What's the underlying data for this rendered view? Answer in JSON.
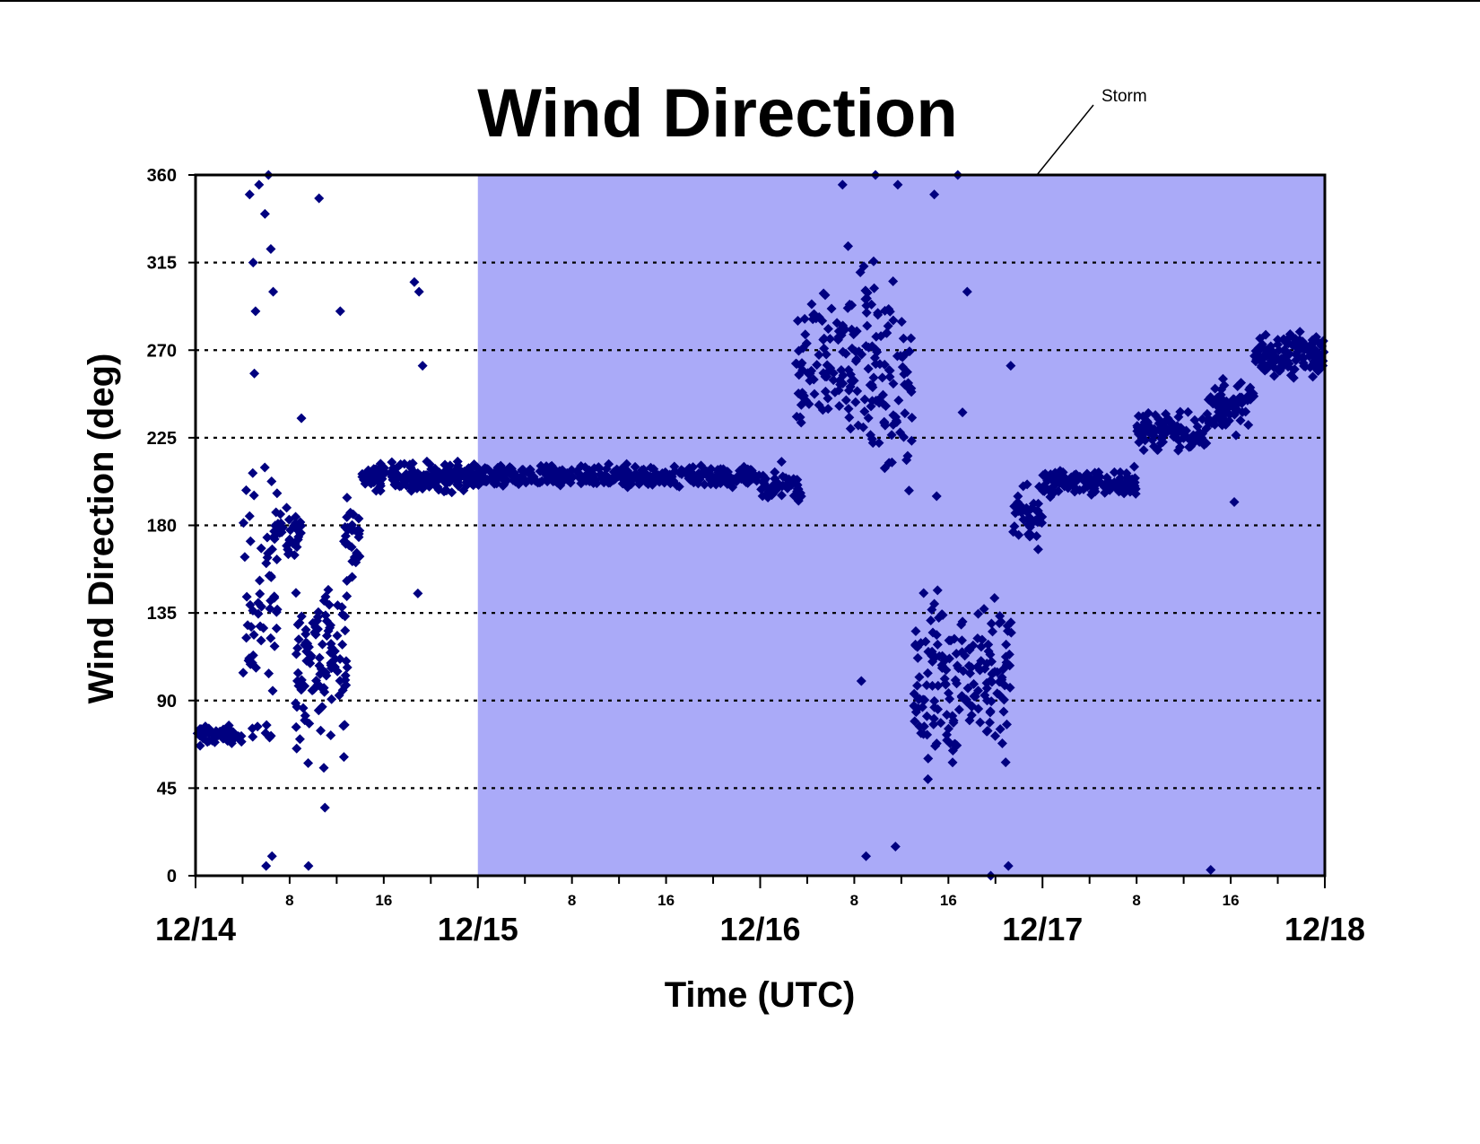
{
  "chart_data": {
    "type": "scatter",
    "title": "Wind Direction",
    "xlabel": "Time (UTC)",
    "ylabel": "Wind Direction (deg)",
    "ylim": [
      0,
      360
    ],
    "yticks": [
      0,
      45,
      90,
      135,
      180,
      225,
      270,
      315,
      360
    ],
    "grid": "dotted horizontal",
    "x_unit": "hours since 12/14 00 UTC",
    "xlim": [
      0,
      96
    ],
    "date_ticks": [
      {
        "x": 0,
        "label": "12/14"
      },
      {
        "x": 24,
        "label": "12/15"
      },
      {
        "x": 48,
        "label": "12/16"
      },
      {
        "x": 72,
        "label": "12/17"
      },
      {
        "x": 96,
        "label": "12/18"
      }
    ],
    "hour_ticks": [
      {
        "x": 8,
        "label": "8"
      },
      {
        "x": 16,
        "label": "16"
      },
      {
        "x": 32,
        "label": "8"
      },
      {
        "x": 40,
        "label": "16"
      },
      {
        "x": 56,
        "label": "8"
      },
      {
        "x": 64,
        "label": "16"
      },
      {
        "x": 80,
        "label": "8"
      },
      {
        "x": 88,
        "label": "16"
      }
    ],
    "minor_tick_every_hours": 4,
    "shaded_region": {
      "label": "Storm",
      "x_start": 24,
      "x_end": 96,
      "color": "#aaaaf8"
    },
    "marker": {
      "shape": "diamond",
      "color": "#000080"
    },
    "series": [
      {
        "name": "",
        "segments": [
          {
            "t0": 0.0,
            "t1": 4.0,
            "center": 72,
            "spread": 14,
            "n": 60
          },
          {
            "t0": 4.0,
            "t1": 7.0,
            "center": 140,
            "spread": 200,
            "n": 60
          },
          {
            "t0": 6.5,
            "t1": 9.0,
            "center": 175,
            "spread": 35,
            "n": 40
          },
          {
            "t0": 8.5,
            "t1": 13.0,
            "center": 110,
            "spread": 130,
            "n": 110
          },
          {
            "t0": 12.5,
            "t1": 14.0,
            "center": 175,
            "spread": 50,
            "n": 30
          },
          {
            "t0": 14.0,
            "t1": 24.0,
            "center": 205,
            "spread": 20,
            "n": 200
          },
          {
            "t0": 24.0,
            "t1": 48.0,
            "center": 205,
            "spread": 15,
            "n": 380
          },
          {
            "t0": 48.0,
            "t1": 51.5,
            "center": 200,
            "spread": 30,
            "n": 50
          },
          {
            "t0": 51.0,
            "t1": 55.0,
            "center": 265,
            "spread": 90,
            "n": 70
          },
          {
            "t0": 55.0,
            "t1": 58.0,
            "center": 270,
            "spread": 150,
            "n": 70
          },
          {
            "t0": 58.0,
            "t1": 61.0,
            "center": 255,
            "spread": 160,
            "n": 60
          },
          {
            "t0": 61.0,
            "t1": 65.0,
            "center": 95,
            "spread": 140,
            "n": 90
          },
          {
            "t0": 65.0,
            "t1": 69.5,
            "center": 105,
            "spread": 120,
            "n": 90
          },
          {
            "t0": 69.5,
            "t1": 72.0,
            "center": 185,
            "spread": 40,
            "n": 40
          },
          {
            "t0": 72.0,
            "t1": 80.0,
            "center": 202,
            "spread": 20,
            "n": 130
          },
          {
            "t0": 80.0,
            "t1": 86.0,
            "center": 228,
            "spread": 26,
            "n": 110
          },
          {
            "t0": 86.0,
            "t1": 90.0,
            "center": 242,
            "spread": 36,
            "n": 70
          },
          {
            "t0": 90.0,
            "t1": 96.0,
            "center": 268,
            "spread": 32,
            "n": 120
          }
        ],
        "outliers": [
          [
            4.6,
            350
          ],
          [
            4.9,
            315
          ],
          [
            5.1,
            290
          ],
          [
            5.4,
            355
          ],
          [
            5.9,
            340
          ],
          [
            6.2,
            360
          ],
          [
            6.4,
            322
          ],
          [
            6.6,
            300
          ],
          [
            5.0,
            258
          ],
          [
            6.0,
            5
          ],
          [
            6.5,
            10
          ],
          [
            9.0,
            235
          ],
          [
            10.5,
            348
          ],
          [
            9.6,
            5
          ],
          [
            12.3,
            290
          ],
          [
            11.0,
            35
          ],
          [
            18.6,
            305
          ],
          [
            19.0,
            300
          ],
          [
            18.9,
            145
          ],
          [
            19.3,
            262
          ],
          [
            55.0,
            355
          ],
          [
            57.8,
            362
          ],
          [
            59.7,
            355
          ],
          [
            62.8,
            350
          ],
          [
            64.8,
            360
          ],
          [
            56.6,
            100
          ],
          [
            57.0,
            10
          ],
          [
            59.5,
            15
          ],
          [
            67.6,
            0
          ],
          [
            69.1,
            5
          ],
          [
            69.3,
            262
          ],
          [
            65.2,
            238
          ],
          [
            63.0,
            195
          ],
          [
            86.3,
            3
          ],
          [
            88.3,
            192
          ],
          [
            73.5,
            208
          ],
          [
            65.6,
            300
          ]
        ]
      }
    ]
  }
}
